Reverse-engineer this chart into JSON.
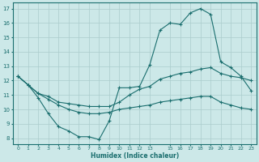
{
  "title": "",
  "xlabel": "Humidex (Indice chaleur)",
  "background_color": "#cce8e8",
  "grid_color": "#aacccc",
  "line_color": "#1a6e6e",
  "x_ticks": [
    0,
    1,
    2,
    3,
    4,
    5,
    6,
    7,
    8,
    9,
    10,
    11,
    12,
    13,
    15,
    16,
    17,
    18,
    19,
    20,
    21,
    22,
    23
  ],
  "x_tick_labels": [
    "0",
    "1",
    "2",
    "3",
    "4",
    "5",
    "6",
    "7",
    "8",
    "9",
    "10",
    "11",
    "12",
    "13",
    "15",
    "16",
    "17",
    "18",
    "19",
    "20",
    "21",
    "22",
    "23"
  ],
  "y_ticks": [
    8,
    9,
    10,
    11,
    12,
    13,
    14,
    15,
    16,
    17
  ],
  "ylim": [
    7.6,
    17.4
  ],
  "xlim": [
    -0.5,
    23.5
  ],
  "series1": [
    12.3,
    11.7,
    10.8,
    9.7,
    8.8,
    8.5,
    8.1,
    8.1,
    7.9,
    9.2,
    11.5,
    11.5,
    11.6,
    13.1,
    15.5,
    16.0,
    15.9,
    16.7,
    17.0,
    16.6,
    13.3,
    12.9,
    12.3,
    11.3
  ],
  "series2": [
    12.3,
    11.7,
    11.1,
    10.9,
    10.5,
    10.4,
    10.3,
    10.2,
    10.2,
    10.2,
    10.5,
    11.0,
    11.4,
    11.6,
    12.1,
    12.3,
    12.5,
    12.6,
    12.8,
    12.9,
    12.5,
    12.3,
    12.2,
    12.0
  ],
  "series3": [
    12.3,
    11.7,
    11.1,
    10.7,
    10.3,
    10.0,
    9.8,
    9.7,
    9.7,
    9.8,
    10.0,
    10.1,
    10.2,
    10.3,
    10.5,
    10.6,
    10.7,
    10.8,
    10.9,
    10.9,
    10.5,
    10.3,
    10.1,
    10.0
  ]
}
